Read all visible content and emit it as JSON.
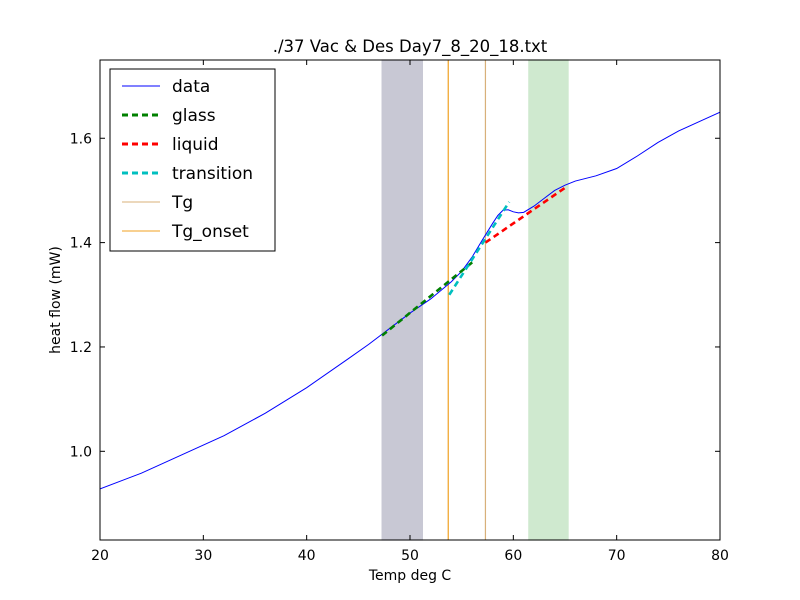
{
  "chart_data": {
    "type": "line",
    "title": "./37 Vac & Des Day7_8_20_18.txt",
    "xlabel": "Temp deg C",
    "ylabel": "heat flow (mW)",
    "xlim": [
      20,
      80
    ],
    "ylim": [
      0.83,
      1.75
    ],
    "xticks": [
      20,
      30,
      40,
      50,
      60,
      70,
      80
    ],
    "xtick_labels": [
      "20",
      "30",
      "40",
      "50",
      "60",
      "70",
      "80"
    ],
    "yticks": [
      1.0,
      1.2,
      1.4,
      1.6
    ],
    "ytick_labels": [
      "1.0",
      "1.2",
      "1.4",
      "1.6"
    ],
    "grid": false,
    "legend_position": "top-left",
    "shaded_regions": [
      {
        "x": [
          47.3,
          51.2
        ],
        "color": "#c8c8d4"
      },
      {
        "x": [
          61.5,
          65.3
        ],
        "color": "#cfe9cf"
      }
    ],
    "vertical_lines": [
      {
        "series": "Tg",
        "x": 57.3,
        "color": "#d8b07a"
      },
      {
        "series": "Tg_onset",
        "x": 53.7,
        "color": "#f0a020"
      }
    ],
    "series": [
      {
        "name": "data",
        "style": "solid",
        "color": "#0000ff",
        "x": [
          20,
          24,
          28,
          32,
          36,
          40,
          44,
          46,
          48,
          50,
          52,
          54,
          55,
          56,
          57,
          58,
          58.5,
          59,
          59.5,
          60,
          60.5,
          61,
          62,
          63,
          64,
          65,
          66,
          68,
          70,
          72,
          74,
          76,
          78,
          80
        ],
        "y": [
          0.928,
          0.958,
          0.994,
          1.03,
          1.073,
          1.122,
          1.177,
          1.205,
          1.235,
          1.265,
          1.292,
          1.325,
          1.345,
          1.372,
          1.405,
          1.437,
          1.452,
          1.462,
          1.463,
          1.459,
          1.457,
          1.458,
          1.47,
          1.485,
          1.5,
          1.51,
          1.518,
          1.528,
          1.542,
          1.566,
          1.592,
          1.614,
          1.632,
          1.65
        ]
      },
      {
        "name": "glass",
        "style": "dashed",
        "color": "#008000",
        "x": [
          47.3,
          56.2
        ],
        "y": [
          1.222,
          1.365
        ]
      },
      {
        "name": "liquid",
        "style": "dashed",
        "color": "#ff0000",
        "x": [
          57.3,
          65.0
        ],
        "y": [
          1.4,
          1.505
        ]
      },
      {
        "name": "transition",
        "style": "dashed",
        "color": "#00bfbf",
        "x": [
          53.8,
          59.6
        ],
        "y": [
          1.3,
          1.478
        ]
      }
    ]
  }
}
